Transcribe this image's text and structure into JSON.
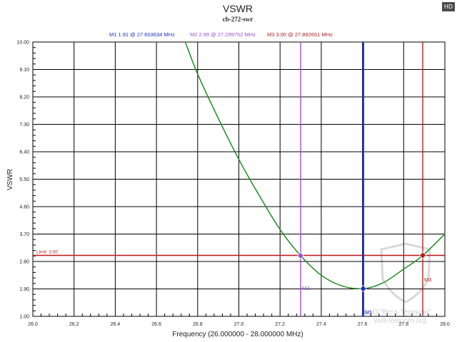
{
  "badge": "HD",
  "watermark": {
    "org": "ЗАО \"Вега-Телеком\"",
    "site": "viva-telecom.org"
  },
  "chart_data": {
    "type": "line",
    "title": "VSWR",
    "subtitle": "cb-272-swr",
    "xlabel": "Frequency (26.000000 - 28.000000 MHz)",
    "ylabel": "VSWR",
    "xlim": [
      26.0,
      28.0
    ],
    "ylim": [
      1.0,
      10.0
    ],
    "x_ticks": [
      "26.0",
      "26.2",
      "26.4",
      "26.6",
      "26.8",
      "27.0",
      "27.2",
      "27.4",
      "27.6",
      "27.8",
      "28.0"
    ],
    "y_ticks": [
      "1.00",
      "1.90",
      "2.80",
      "3.70",
      "4.60",
      "5.50",
      "6.40",
      "7.30",
      "8.20",
      "9.10",
      "10.00"
    ],
    "grid": true,
    "colors": {
      "curve": "#228b22",
      "grid": "#000000",
      "M1": "#1a2fbf",
      "M2": "#9b4fd6",
      "M3": "#b22222",
      "limit": "#c02020",
      "title": "#222222"
    },
    "series": [
      {
        "values": [
          {
            "x": 26.74,
            "y": 10.0
          },
          {
            "x": 26.8,
            "y": 8.95
          },
          {
            "x": 26.9,
            "y": 7.5
          },
          {
            "x": 27.0,
            "y": 6.15
          },
          {
            "x": 27.1,
            "y": 4.95
          },
          {
            "x": 27.2,
            "y": 3.85
          },
          {
            "x": 27.3,
            "y": 2.99
          },
          {
            "x": 27.4,
            "y": 2.35
          },
          {
            "x": 27.5,
            "y": 2.0
          },
          {
            "x": 27.604,
            "y": 1.91
          },
          {
            "x": 27.7,
            "y": 2.1
          },
          {
            "x": 27.8,
            "y": 2.55
          },
          {
            "x": 27.893,
            "y": 3.0
          },
          {
            "x": 28.0,
            "y": 3.7
          }
        ]
      }
    ],
    "limit": {
      "label": "Limit: 3.00",
      "value": 3.0
    },
    "markers": [
      {
        "id": "M1",
        "x": 27.603634,
        "y": 1.91,
        "legend": "M1  1.91 @ 27.603634 MHz"
      },
      {
        "id": "M2",
        "x": 27.299752,
        "y": 2.99,
        "legend": "M2  2.99 @ 27.299752 MHz"
      },
      {
        "id": "M3",
        "x": 27.892651,
        "y": 3.0,
        "legend": "M3  3.00 @ 27.892651 MHz"
      }
    ]
  }
}
